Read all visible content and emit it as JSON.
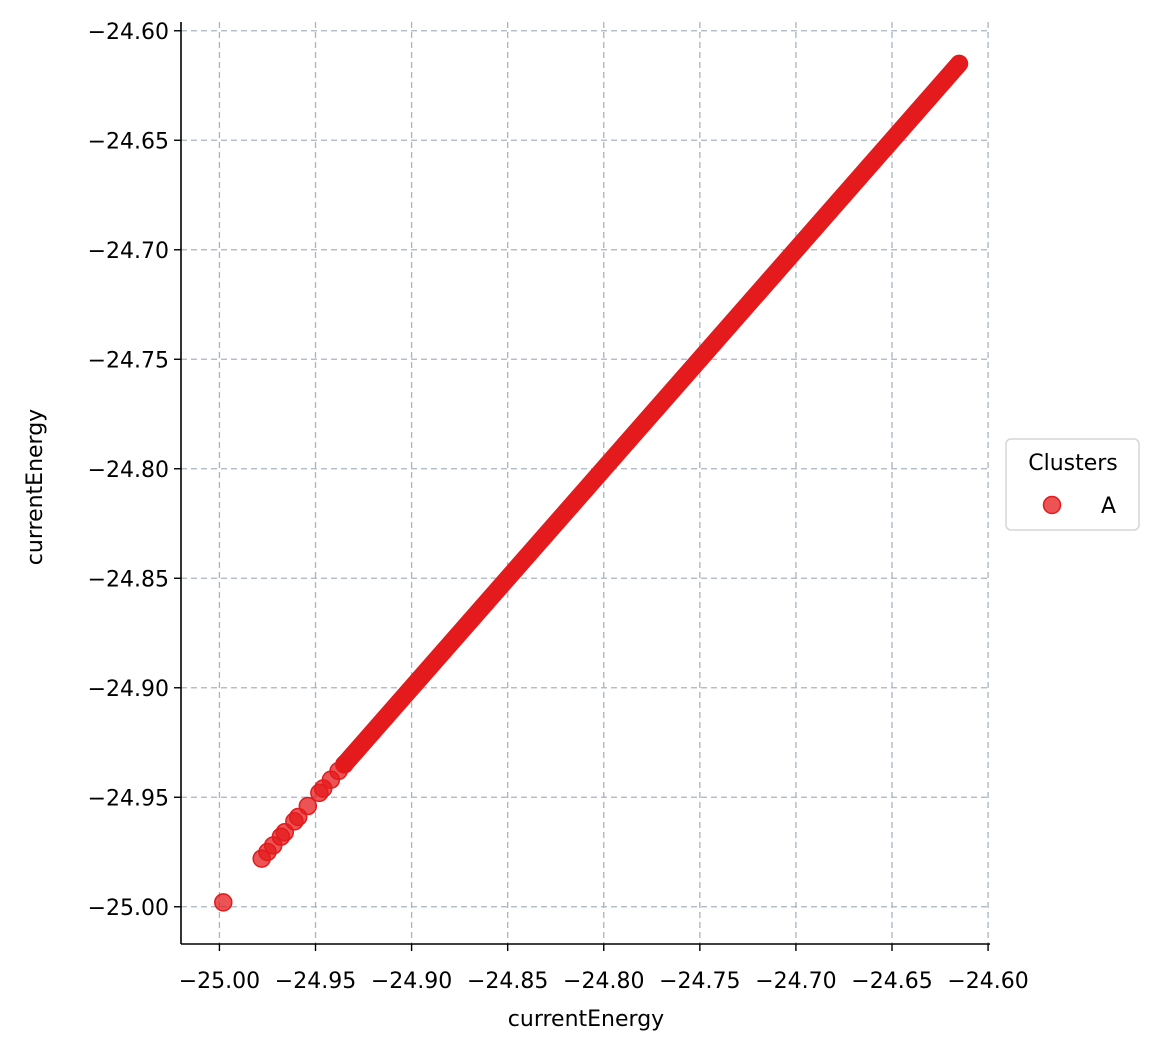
{
  "chart_data": {
    "type": "scatter",
    "title": "",
    "xlabel": "currentEnergy",
    "ylabel": "currentEnergy",
    "xlim": [
      -25.02,
      -24.599
    ],
    "ylim": [
      -25.017,
      -24.596
    ],
    "x_ticks": [
      -25.0,
      -24.95,
      -24.9,
      -24.85,
      -24.8,
      -24.75,
      -24.7,
      -24.65,
      -24.6
    ],
    "y_ticks": [
      -25.0,
      -24.95,
      -24.9,
      -24.85,
      -24.8,
      -24.75,
      -24.7,
      -24.65,
      -24.6
    ],
    "x_tick_labels": [
      "−25.00",
      "−24.95",
      "−24.90",
      "−24.85",
      "−24.80",
      "−24.75",
      "−24.70",
      "−24.65",
      "−24.60"
    ],
    "y_tick_labels": [
      "−25.00",
      "−24.95",
      "−24.90",
      "−24.85",
      "−24.80",
      "−24.75",
      "−24.70",
      "−24.65",
      "−24.60"
    ],
    "grid": true,
    "grid_style": "dashed",
    "grid_color": "#a9b4c2",
    "legend": {
      "title": "Clusters",
      "placement": "outside-right",
      "entries": [
        {
          "label": "A",
          "color": "#e41a1c"
        }
      ]
    },
    "series": [
      {
        "name": "A",
        "color": "#e41a1c",
        "x": [
          -24.998,
          -24.978,
          -24.975,
          -24.972,
          -24.968,
          -24.966,
          -24.961,
          -24.959,
          -24.954,
          -24.948,
          -24.946,
          -24.942,
          -24.938,
          -24.935
        ],
        "y": [
          -24.998,
          -24.978,
          -24.975,
          -24.972,
          -24.968,
          -24.966,
          -24.961,
          -24.959,
          -24.954,
          -24.948,
          -24.946,
          -24.942,
          -24.938,
          -24.935
        ],
        "dense_segment": {
          "from": -24.935,
          "to": -24.615
        }
      }
    ]
  }
}
